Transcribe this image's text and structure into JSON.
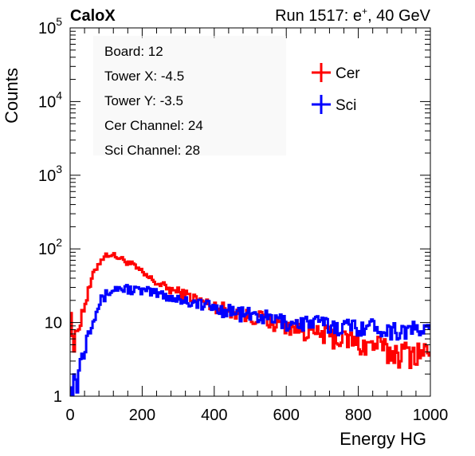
{
  "chart_data": {
    "type": "line",
    "header_left": "CaloX",
    "header_right_prefix": "Run 1517: e",
    "header_right_sup": "+",
    "header_right_suffix": ", 40 GeV",
    "xlabel": "Energy HG",
    "ylabel": "Counts",
    "xlim": [
      0,
      1000
    ],
    "ylim": [
      1,
      100000
    ],
    "yscale": "log",
    "x_ticks": [
      "0",
      "200",
      "400",
      "600",
      "800",
      "1000"
    ],
    "y_ticks": [
      {
        "base": "1",
        "exp": ""
      },
      {
        "base": "10",
        "exp": ""
      },
      {
        "base": "10",
        "exp": "2"
      },
      {
        "base": "10",
        "exp": "3"
      },
      {
        "base": "10",
        "exp": "4"
      },
      {
        "base": "10",
        "exp": "5"
      }
    ],
    "info_lines": [
      "Board: 12",
      "Tower X: -4.5",
      "Tower Y: -3.5",
      "Cer Channel: 24",
      "Sci Channel: 28"
    ],
    "legend_placement": "top-right",
    "grid": false,
    "series": [
      {
        "name": "Cer",
        "color": "#ff0000",
        "x": [
          0,
          10,
          20,
          30,
          40,
          50,
          60,
          70,
          80,
          90,
          100,
          110,
          120,
          130,
          140,
          150,
          160,
          170,
          180,
          190,
          200,
          220,
          240,
          260,
          280,
          300,
          320,
          340,
          360,
          380,
          400,
          420,
          440,
          460,
          480,
          500,
          520,
          540,
          560,
          580,
          600,
          620,
          640,
          660,
          680,
          700,
          720,
          740,
          760,
          780,
          800,
          820,
          840,
          860,
          880,
          900,
          920,
          940,
          960,
          980,
          1000
        ],
        "y": [
          25,
          4,
          8,
          12,
          17,
          25,
          38,
          52,
          65,
          75,
          82,
          85,
          82,
          78,
          74,
          70,
          66,
          62,
          57,
          52,
          47,
          40,
          35,
          31,
          28,
          26,
          24,
          22,
          20,
          18,
          17,
          16,
          15,
          14,
          13,
          12,
          12,
          11,
          10,
          10,
          9,
          9,
          8,
          8,
          7,
          7,
          7,
          6,
          6,
          6,
          5,
          5,
          5,
          5,
          4,
          4,
          4,
          4,
          4,
          4,
          4
        ]
      },
      {
        "name": "Sci",
        "color": "#0000ff",
        "x": [
          0,
          10,
          20,
          30,
          40,
          50,
          60,
          70,
          80,
          90,
          100,
          110,
          120,
          130,
          140,
          150,
          160,
          170,
          180,
          190,
          200,
          220,
          240,
          260,
          280,
          300,
          320,
          340,
          360,
          380,
          400,
          420,
          440,
          460,
          480,
          500,
          520,
          540,
          560,
          580,
          600,
          620,
          640,
          660,
          680,
          700,
          720,
          740,
          760,
          780,
          800,
          820,
          840,
          860,
          880,
          900,
          920,
          940,
          960,
          980,
          1000
        ],
        "y": [
          3,
          1.5,
          2,
          3,
          5,
          8,
          11,
          14,
          18,
          21,
          24,
          26,
          28,
          29,
          29,
          29,
          29,
          28,
          28,
          27,
          27,
          26,
          25,
          24,
          22,
          21,
          20,
          19,
          18,
          17,
          16,
          15,
          15,
          14,
          13,
          13,
          12,
          12,
          11,
          11,
          10,
          10,
          10,
          10,
          10,
          10,
          9,
          9,
          9,
          9,
          9,
          9,
          9,
          9,
          8,
          8,
          8,
          8,
          8,
          8,
          8
        ]
      }
    ]
  }
}
